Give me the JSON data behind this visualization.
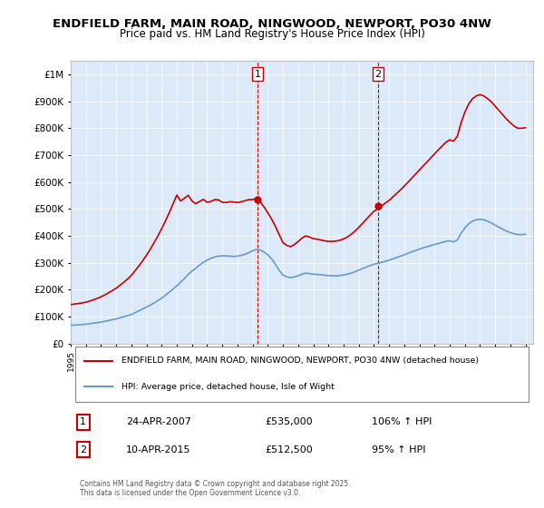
{
  "title": "ENDFIELD FARM, MAIN ROAD, NINGWOOD, NEWPORT, PO30 4NW",
  "subtitle": "Price paid vs. HM Land Registry's House Price Index (HPI)",
  "ylabel_ticks": [
    "£0",
    "£100K",
    "£200K",
    "£300K",
    "£400K",
    "£500K",
    "£600K",
    "£700K",
    "£800K",
    "£900K",
    "£1M"
  ],
  "ytick_values": [
    0,
    100000,
    200000,
    300000,
    400000,
    500000,
    600000,
    700000,
    800000,
    900000,
    1000000
  ],
  "ylim": [
    0,
    1050000
  ],
  "xlim_start": 1995.0,
  "xlim_end": 2025.5,
  "background_color": "#dce9f8",
  "plot_bg": "#dce9f8",
  "legend_entry1": "ENDFIELD FARM, MAIN ROAD, NINGWOOD, NEWPORT, PO30 4NW (detached house)",
  "legend_entry2": "HPI: Average price, detached house, Isle of Wight",
  "sale1_date": "24-APR-2007",
  "sale1_price": 535000,
  "sale1_label": "106% ↑ HPI",
  "sale1_year": 2007.31,
  "sale2_date": "10-APR-2015",
  "sale2_price": 512500,
  "sale2_label": "95% ↑ HPI",
  "sale2_year": 2015.28,
  "red_color": "#cc0000",
  "blue_color": "#6699cc",
  "dashed_color": "#cc0000",
  "footer": "Contains HM Land Registry data © Crown copyright and database right 2025.\nThis data is licensed under the Open Government Licence v3.0.",
  "hpi_data": {
    "years": [
      1995.0,
      1995.25,
      1995.5,
      1995.75,
      1996.0,
      1996.25,
      1996.5,
      1996.75,
      1997.0,
      1997.25,
      1997.5,
      1997.75,
      1998.0,
      1998.25,
      1998.5,
      1998.75,
      1999.0,
      1999.25,
      1999.5,
      1999.75,
      2000.0,
      2000.25,
      2000.5,
      2000.75,
      2001.0,
      2001.25,
      2001.5,
      2001.75,
      2002.0,
      2002.25,
      2002.5,
      2002.75,
      2003.0,
      2003.25,
      2003.5,
      2003.75,
      2004.0,
      2004.25,
      2004.5,
      2004.75,
      2005.0,
      2005.25,
      2005.5,
      2005.75,
      2006.0,
      2006.25,
      2006.5,
      2006.75,
      2007.0,
      2007.25,
      2007.5,
      2007.75,
      2008.0,
      2008.25,
      2008.5,
      2008.75,
      2009.0,
      2009.25,
      2009.5,
      2009.75,
      2010.0,
      2010.25,
      2010.5,
      2010.75,
      2011.0,
      2011.25,
      2011.5,
      2011.75,
      2012.0,
      2012.25,
      2012.5,
      2012.75,
      2013.0,
      2013.25,
      2013.5,
      2013.75,
      2014.0,
      2014.25,
      2014.5,
      2014.75,
      2015.0,
      2015.25,
      2015.5,
      2015.75,
      2016.0,
      2016.25,
      2016.5,
      2016.75,
      2017.0,
      2017.25,
      2017.5,
      2017.75,
      2018.0,
      2018.25,
      2018.5,
      2018.75,
      2019.0,
      2019.25,
      2019.5,
      2019.75,
      2020.0,
      2020.25,
      2020.5,
      2020.75,
      2021.0,
      2021.25,
      2021.5,
      2021.75,
      2022.0,
      2022.25,
      2022.5,
      2022.75,
      2023.0,
      2023.25,
      2023.5,
      2023.75,
      2024.0,
      2024.25,
      2024.5,
      2024.75,
      2025.0
    ],
    "values": [
      68000,
      69000,
      70000,
      71000,
      72000,
      74000,
      76000,
      78000,
      80000,
      83000,
      86000,
      89000,
      92000,
      96000,
      100000,
      104000,
      108000,
      115000,
      122000,
      129000,
      136000,
      143000,
      151000,
      160000,
      169000,
      180000,
      191000,
      203000,
      215000,
      228000,
      242000,
      257000,
      270000,
      280000,
      292000,
      302000,
      310000,
      317000,
      322000,
      325000,
      326000,
      326000,
      325000,
      324000,
      325000,
      328000,
      332000,
      338000,
      345000,
      350000,
      348000,
      340000,
      330000,
      315000,
      295000,
      272000,
      255000,
      248000,
      245000,
      248000,
      252000,
      258000,
      262000,
      260000,
      258000,
      257000,
      256000,
      254000,
      253000,
      252000,
      252000,
      253000,
      255000,
      258000,
      262000,
      267000,
      273000,
      279000,
      285000,
      290000,
      295000,
      298000,
      302000,
      306000,
      310000,
      315000,
      320000,
      325000,
      330000,
      336000,
      341000,
      346000,
      351000,
      356000,
      360000,
      364000,
      368000,
      372000,
      376000,
      380000,
      382000,
      378000,
      385000,
      410000,
      430000,
      445000,
      455000,
      460000,
      462000,
      460000,
      455000,
      448000,
      440000,
      432000,
      425000,
      418000,
      412000,
      408000,
      405000,
      405000,
      406000
    ]
  },
  "price_data": {
    "years": [
      1995.0,
      1995.25,
      1995.5,
      1995.75,
      1996.0,
      1996.25,
      1996.5,
      1996.75,
      1997.0,
      1997.25,
      1997.5,
      1997.75,
      1998.0,
      1998.25,
      1998.5,
      1998.75,
      1999.0,
      1999.25,
      1999.5,
      1999.75,
      2000.0,
      2000.25,
      2000.5,
      2000.75,
      2001.0,
      2001.25,
      2001.5,
      2001.75,
      2002.0,
      2002.25,
      2002.5,
      2002.75,
      2003.0,
      2003.25,
      2003.5,
      2003.75,
      2004.0,
      2004.25,
      2004.5,
      2004.75,
      2005.0,
      2005.25,
      2005.5,
      2005.75,
      2006.0,
      2006.25,
      2006.5,
      2006.75,
      2007.0,
      2007.25,
      2007.5,
      2007.75,
      2008.0,
      2008.25,
      2008.5,
      2008.75,
      2009.0,
      2009.25,
      2009.5,
      2009.75,
      2010.0,
      2010.25,
      2010.5,
      2010.75,
      2011.0,
      2011.25,
      2011.5,
      2011.75,
      2012.0,
      2012.25,
      2012.5,
      2012.75,
      2013.0,
      2013.25,
      2013.5,
      2013.75,
      2014.0,
      2014.25,
      2014.5,
      2014.75,
      2015.0,
      2015.25,
      2015.5,
      2015.75,
      2016.0,
      2016.25,
      2016.5,
      2016.75,
      2017.0,
      2017.25,
      2017.5,
      2017.75,
      2018.0,
      2018.25,
      2018.5,
      2018.75,
      2019.0,
      2019.25,
      2019.5,
      2019.75,
      2020.0,
      2020.25,
      2020.5,
      2020.75,
      2021.0,
      2021.25,
      2021.5,
      2021.75,
      2022.0,
      2022.25,
      2022.5,
      2022.75,
      2023.0,
      2023.25,
      2023.5,
      2023.75,
      2024.0,
      2024.25,
      2024.5,
      2024.75,
      2025.0
    ],
    "values": [
      145000,
      147000,
      149000,
      151000,
      154000,
      158000,
      163000,
      168000,
      174000,
      181000,
      189000,
      197000,
      206000,
      217000,
      228000,
      240000,
      254000,
      271000,
      289000,
      308000,
      329000,
      351000,
      375000,
      400000,
      427000,
      456000,
      487000,
      519000,
      552000,
      530000,
      540000,
      551000,
      530000,
      520000,
      528000,
      536000,
      525000,
      528000,
      535000,
      534000,
      525000,
      524000,
      527000,
      526000,
      524000,
      527000,
      531000,
      535000,
      535000,
      540000,
      527000,
      508000,
      486000,
      463000,
      436000,
      405000,
      375000,
      365000,
      360000,
      368000,
      379000,
      392000,
      400000,
      396000,
      390000,
      388000,
      385000,
      382000,
      380000,
      380000,
      381000,
      384000,
      389000,
      396000,
      406000,
      418000,
      432000,
      447000,
      462000,
      477000,
      492000,
      500000,
      512000,
      522000,
      532000,
      545000,
      558000,
      571000,
      585000,
      600000,
      615000,
      630000,
      645000,
      660000,
      675000,
      690000,
      705000,
      720000,
      734000,
      748000,
      757000,
      752000,
      770000,
      820000,
      860000,
      890000,
      910000,
      920000,
      925000,
      920000,
      910000,
      898000,
      882000,
      866000,
      850000,
      834000,
      820000,
      808000,
      800000,
      800000,
      802000
    ]
  }
}
